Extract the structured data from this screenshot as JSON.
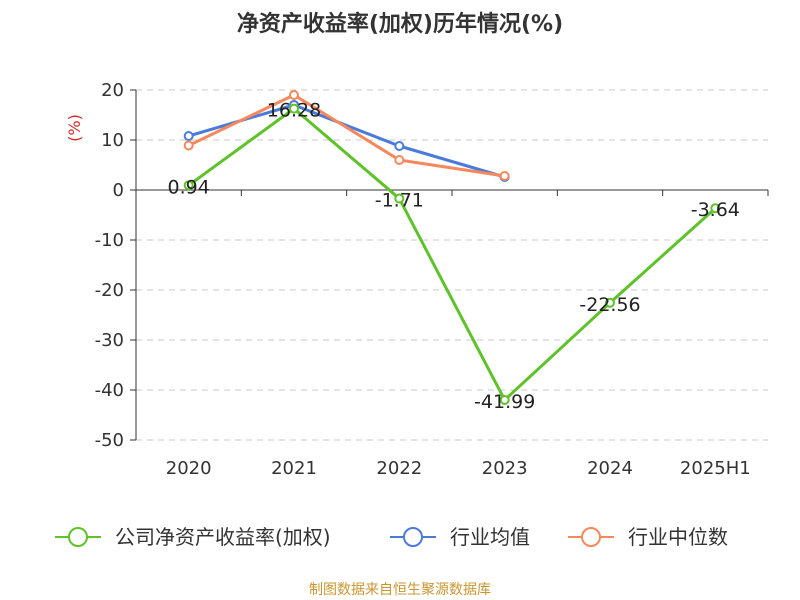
{
  "chart_data": {
    "type": "line",
    "title": "净资产收益率(加权)历年情况(%)",
    "ylabel": "(%)",
    "ylim": [
      -50,
      20
    ],
    "yticks": [
      20,
      10,
      0,
      -10,
      -20,
      -30,
      -40,
      -50
    ],
    "grid": true,
    "legend_position": "bottom",
    "categories": [
      "2020",
      "2021",
      "2022",
      "2023",
      "2024",
      "2025H1"
    ],
    "series": [
      {
        "name": "公司净资产收益率(加权)",
        "color": "#5ec22a",
        "values": [
          0.94,
          16.28,
          -1.71,
          -41.99,
          -22.56,
          -3.64
        ],
        "labels": [
          "0.94",
          "16.28",
          "-1.71",
          "-41.99",
          "-22.56",
          "-3.64"
        ]
      },
      {
        "name": "行业均值",
        "color": "#4b7bd9",
        "values": [
          10.8,
          17.0,
          8.8,
          2.6,
          null,
          null
        ]
      },
      {
        "name": "行业中位数",
        "color": "#f5885c",
        "values": [
          8.9,
          19.0,
          6.0,
          2.8,
          null,
          null
        ]
      }
    ]
  },
  "unit_color": "#d42a2a",
  "source": {
    "text": "制图数据来自恒生聚源数据库",
    "color": "#c9962e"
  }
}
